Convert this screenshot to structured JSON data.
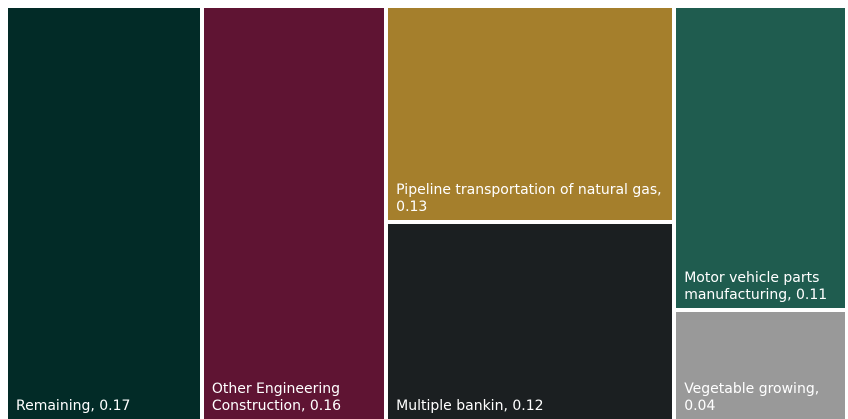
{
  "chart_data": {
    "type": "treemap",
    "categories": [
      "Remaining",
      "Other Engineering Construction",
      "Pipeline transportation of natural gas",
      "Multiple bankin",
      "Motor vehicle parts manufacturing",
      "Vegetable growing"
    ],
    "values": [
      0.17,
      0.16,
      0.13,
      0.12,
      0.11,
      0.04
    ],
    "labels": [
      "Remaining, 0.17",
      "Other Engineering Construction, 0.16",
      "Pipeline transportation of natural gas, 0.13",
      "Multiple bankin, 0.12",
      "Motor vehicle parts manufacturing, 0.11",
      "Vegetable growing, 0.04"
    ],
    "colors": [
      "#022b27",
      "#5f1433",
      "#a57f2c",
      "#1b1f21",
      "#1f5c4f",
      "#999999"
    ]
  }
}
